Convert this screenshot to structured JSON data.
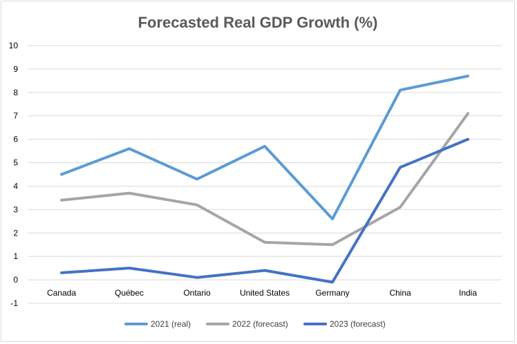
{
  "chart_data": {
    "type": "line",
    "title": "Forecasted Real GDP Growth (%)",
    "xlabel": "",
    "ylabel": "",
    "categories": [
      "Canada",
      "Québec",
      "Ontario",
      "United States",
      "Germany",
      "China",
      "India"
    ],
    "ylim": [
      -1,
      10
    ],
    "yticks": [
      -1,
      0,
      1,
      2,
      3,
      4,
      5,
      6,
      7,
      8,
      9,
      10
    ],
    "grid": true,
    "legend_position": "bottom",
    "series": [
      {
        "name": "2021 (real)",
        "color": "#5b9bd5",
        "values": [
          4.5,
          5.6,
          4.3,
          5.7,
          2.6,
          8.1,
          8.7
        ]
      },
      {
        "name": "2022 (forecast)",
        "color": "#a5a5a5",
        "values": [
          3.4,
          3.7,
          3.2,
          1.6,
          1.5,
          3.1,
          7.1
        ]
      },
      {
        "name": "2023 (forecast)",
        "color": "#4472c4",
        "values": [
          0.3,
          0.5,
          0.1,
          0.4,
          -0.1,
          4.8,
          6.0
        ]
      }
    ]
  }
}
